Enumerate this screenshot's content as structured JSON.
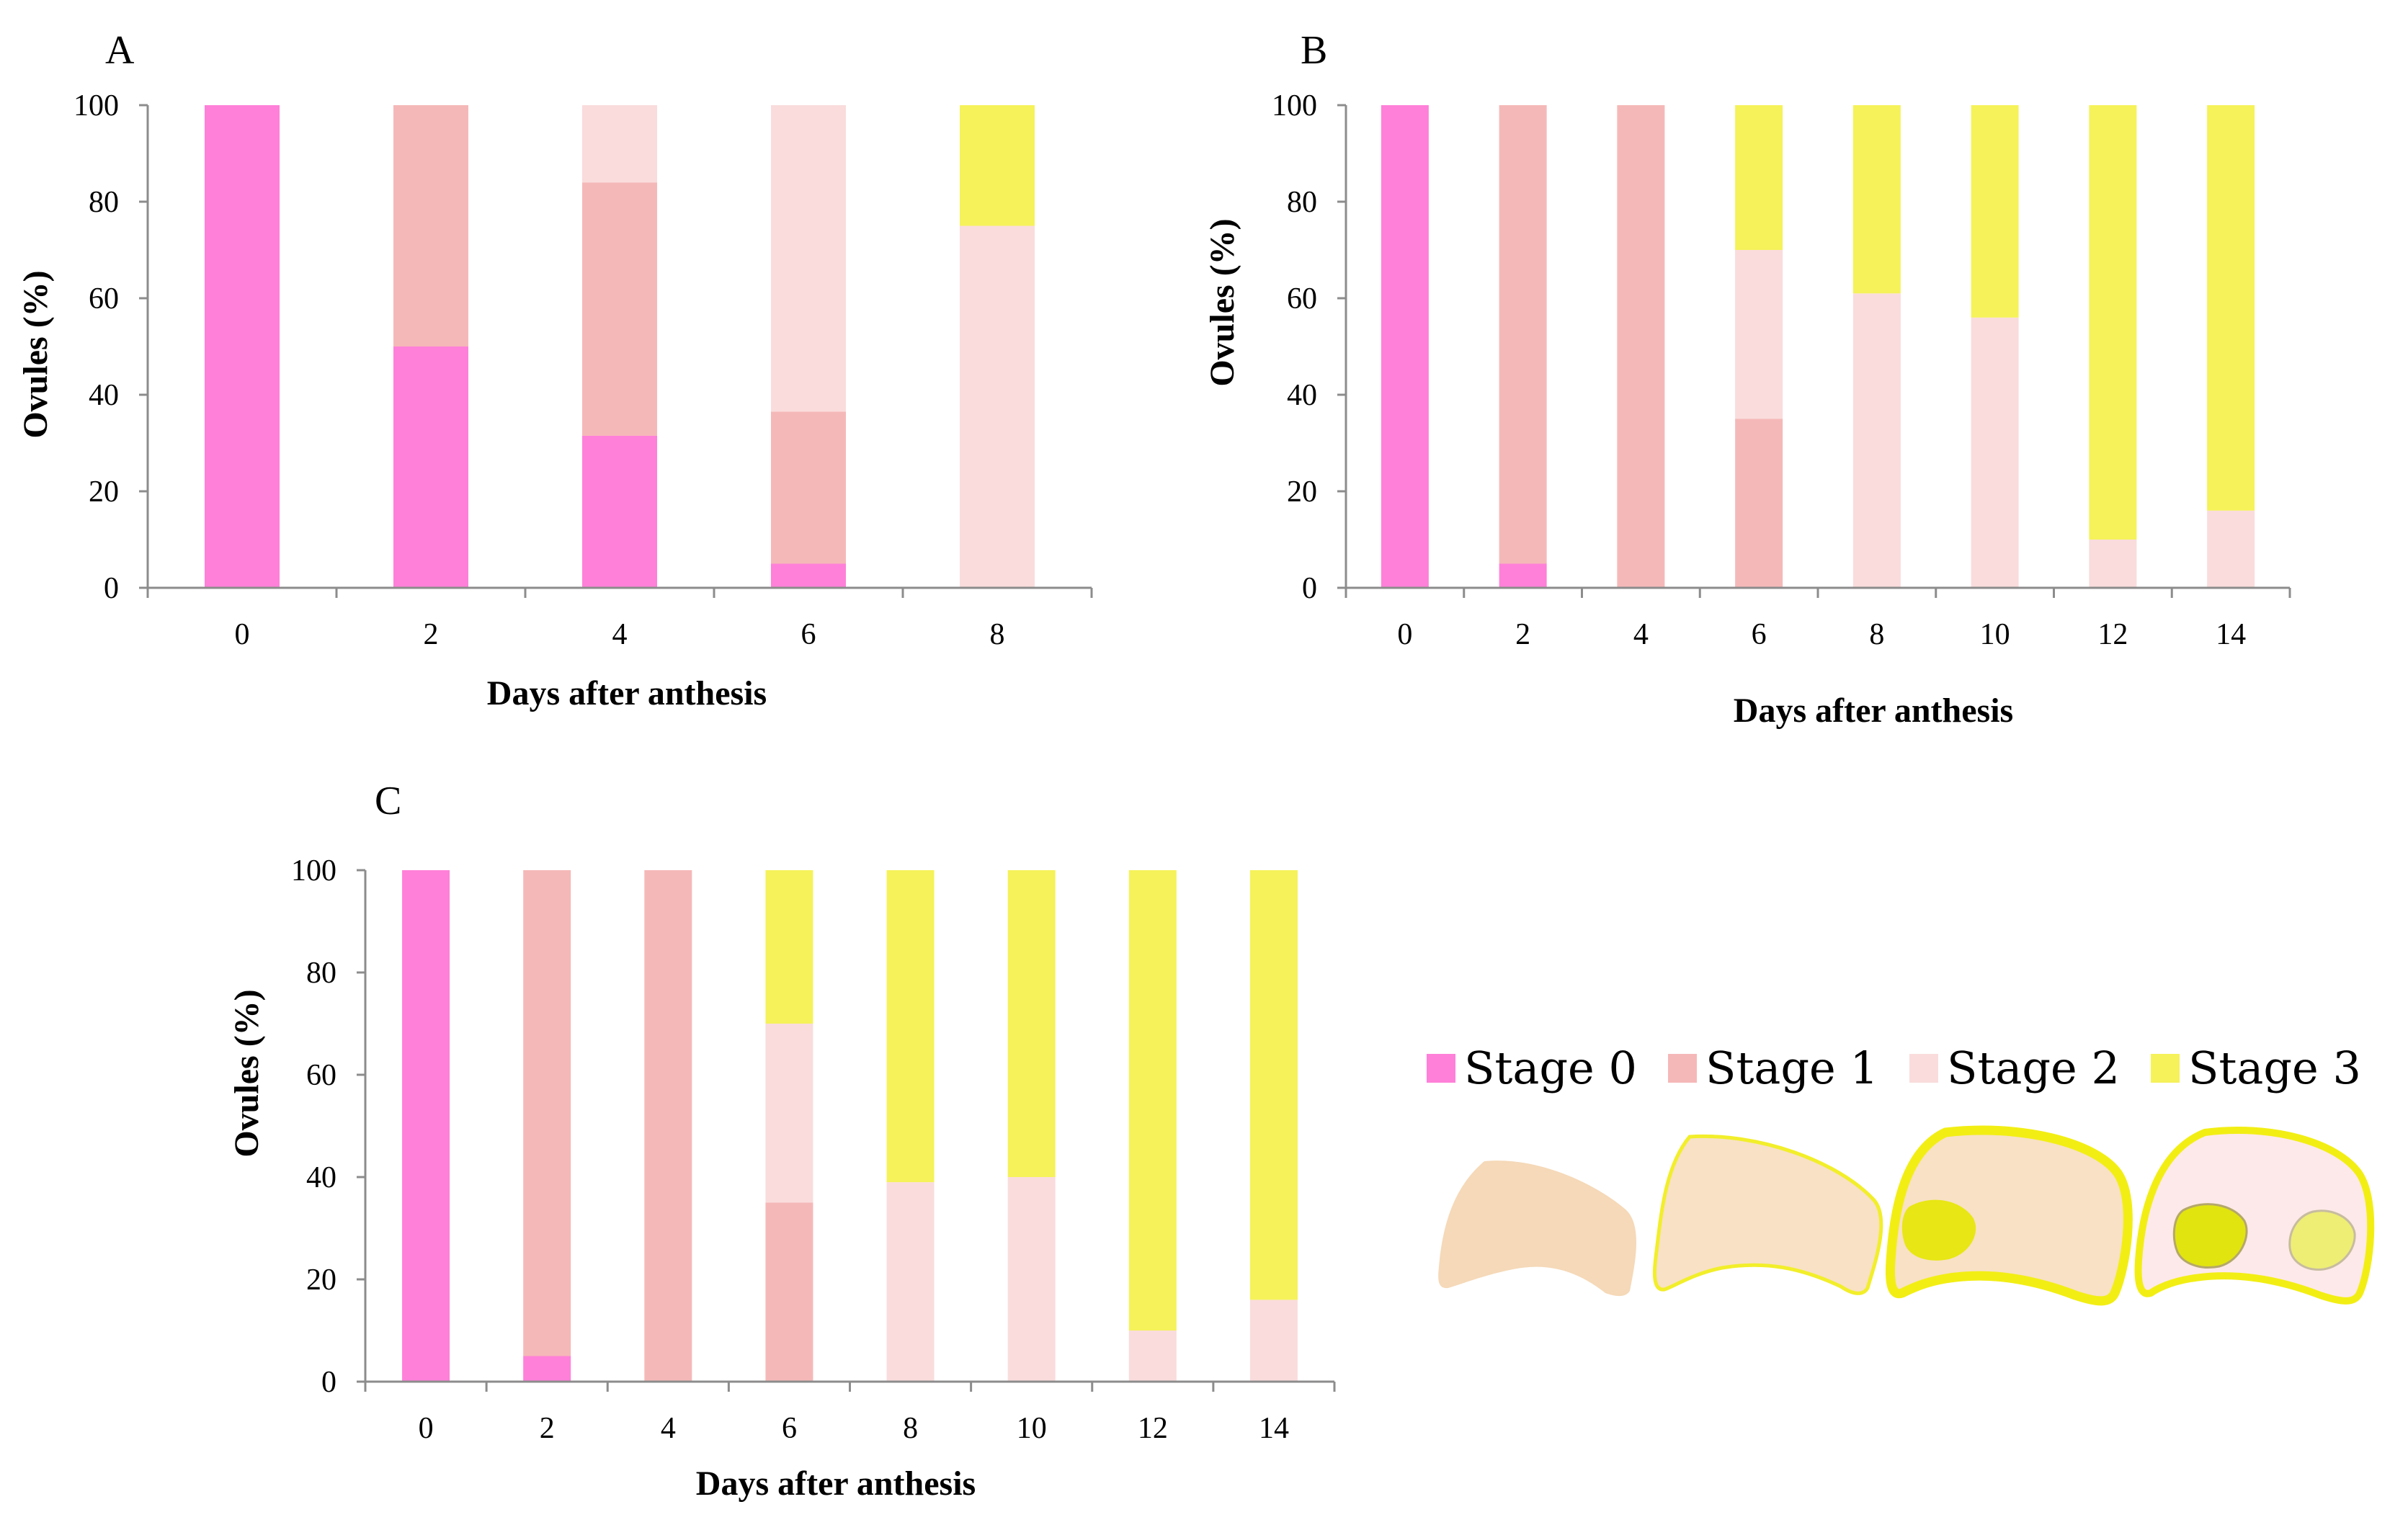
{
  "colors": {
    "stage0": "#ff80d8",
    "stage1": "#f5b8b8",
    "stage2": "#fadcdc",
    "stage3": "#f5f25a"
  },
  "legend": {
    "items": [
      {
        "key": "stage0",
        "label": "Stage 0"
      },
      {
        "key": "stage1",
        "label": "Stage 1"
      },
      {
        "key": "stage2",
        "label": "Stage 2"
      },
      {
        "key": "stage3",
        "label": "Stage 3"
      }
    ]
  },
  "chart_data": [
    {
      "panel": "A",
      "type": "bar",
      "stacked": true,
      "xlabel": "Days after anthesis",
      "ylabel": "Ovules (%)",
      "ylim": [
        0,
        100
      ],
      "yticks": [
        0,
        20,
        40,
        60,
        80,
        100
      ],
      "categories": [
        "0",
        "2",
        "4",
        "6",
        "8"
      ],
      "series": [
        {
          "name": "Stage 0",
          "key": "stage0",
          "values": [
            100,
            50,
            31.5,
            5,
            0
          ]
        },
        {
          "name": "Stage 1",
          "key": "stage1",
          "values": [
            0,
            50,
            52.5,
            31.5,
            0
          ]
        },
        {
          "name": "Stage 2",
          "key": "stage2",
          "values": [
            0,
            0,
            16,
            63.5,
            75
          ]
        },
        {
          "name": "Stage 3",
          "key": "stage3",
          "values": [
            0,
            0,
            0,
            0,
            25
          ]
        }
      ]
    },
    {
      "panel": "B",
      "type": "bar",
      "stacked": true,
      "xlabel": "Days after anthesis",
      "ylabel": "Ovules (%)",
      "ylim": [
        0,
        100
      ],
      "yticks": [
        0,
        20,
        40,
        60,
        80,
        100
      ],
      "categories": [
        "0",
        "2",
        "4",
        "6",
        "8",
        "10",
        "12",
        "14"
      ],
      "series": [
        {
          "name": "Stage 0",
          "key": "stage0",
          "values": [
            100,
            5,
            0,
            0,
            0,
            0,
            0,
            0
          ]
        },
        {
          "name": "Stage 1",
          "key": "stage1",
          "values": [
            0,
            95,
            100,
            35,
            0,
            0,
            0,
            0
          ]
        },
        {
          "name": "Stage 2",
          "key": "stage2",
          "values": [
            0,
            0,
            0,
            35,
            61,
            56,
            10,
            16
          ]
        },
        {
          "name": "Stage 3",
          "key": "stage3",
          "values": [
            0,
            0,
            0,
            30,
            39,
            44,
            90,
            84
          ]
        }
      ]
    },
    {
      "panel": "C",
      "type": "bar",
      "stacked": true,
      "xlabel": "Days after anthesis",
      "ylabel": "Ovules (%)",
      "ylim": [
        0,
        100
      ],
      "yticks": [
        0,
        20,
        40,
        60,
        80,
        100
      ],
      "categories": [
        "0",
        "2",
        "4",
        "6",
        "8",
        "10",
        "12",
        "14"
      ],
      "series": [
        {
          "name": "Stage 0",
          "key": "stage0",
          "values": [
            100,
            5,
            0,
            0,
            0,
            0,
            0,
            0
          ]
        },
        {
          "name": "Stage 1",
          "key": "stage1",
          "values": [
            0,
            95,
            100,
            35,
            0,
            0,
            0,
            0
          ]
        },
        {
          "name": "Stage 2",
          "key": "stage2",
          "values": [
            0,
            0,
            0,
            35,
            39,
            40,
            10,
            16
          ]
        },
        {
          "name": "Stage 3",
          "key": "stage3",
          "values": [
            0,
            0,
            0,
            30,
            61,
            60,
            90,
            84
          ]
        }
      ]
    }
  ]
}
